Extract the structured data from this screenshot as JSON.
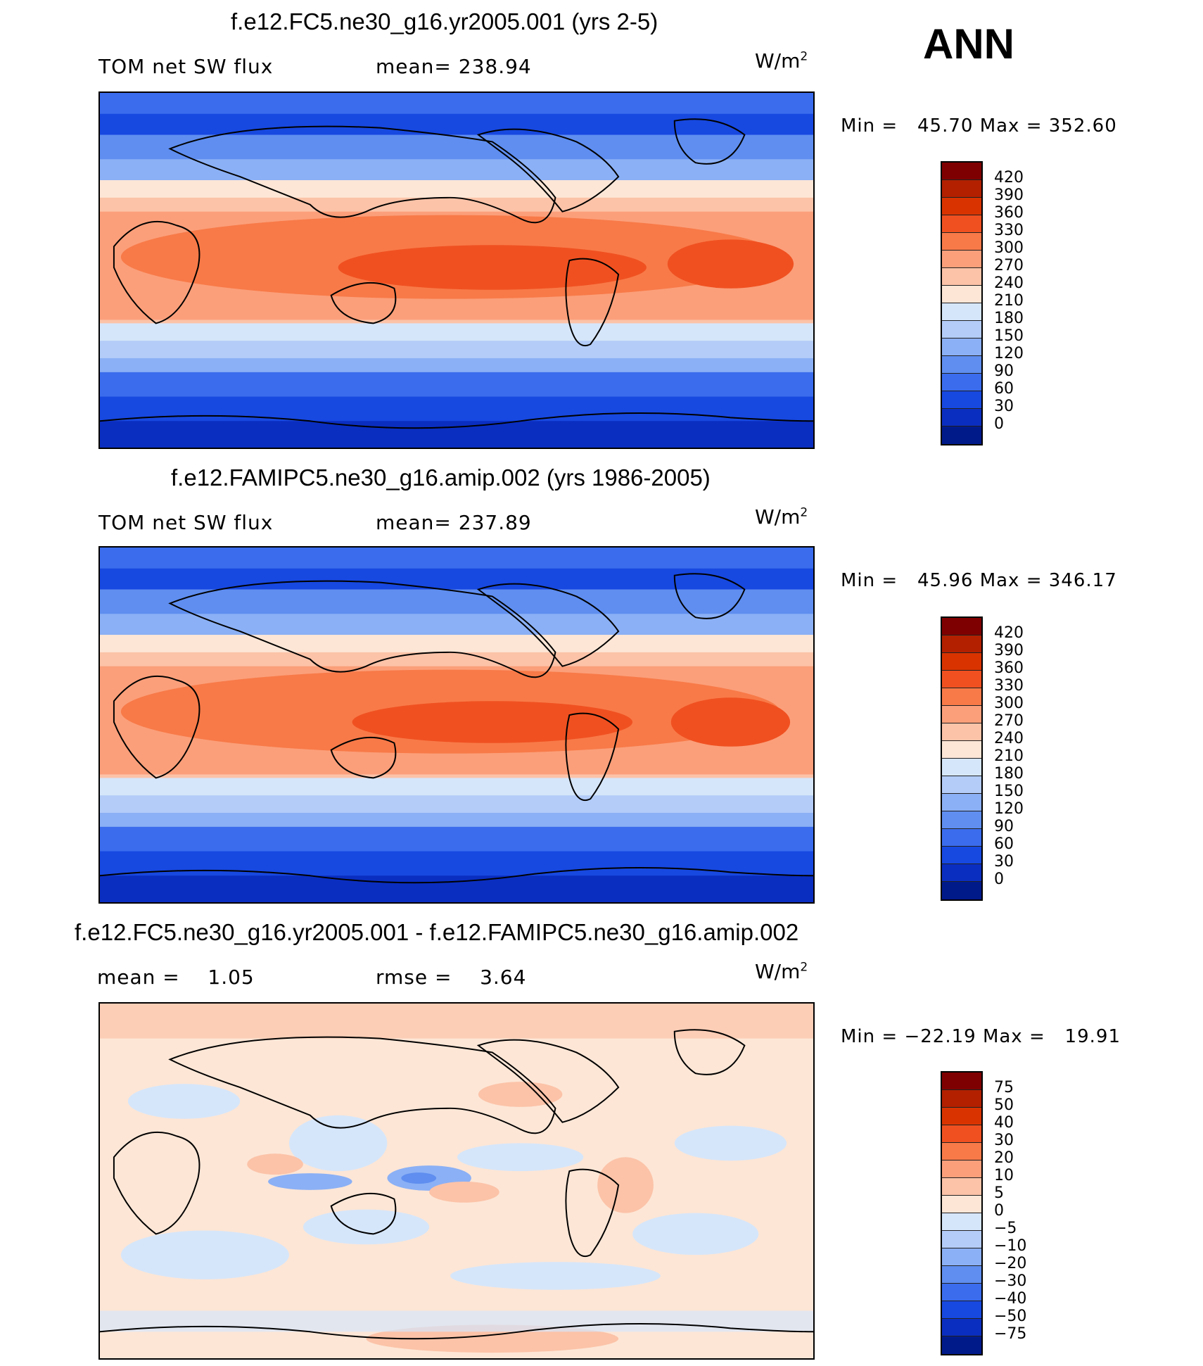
{
  "season": "ANN",
  "panels": [
    {
      "title": "f.e12.FC5.ne30_g16.yr2005.001 (yrs 2-5)",
      "left_label": "TOM net SW flux",
      "stat_label": "mean= 238.94",
      "unit": "W/m",
      "unit_exp": "2",
      "min_label": "Min =",
      "min_value": "45.70",
      "max_label": "Max =",
      "max_value": "352.60",
      "colorbar": {
        "labels": [
          "420",
          "390",
          "360",
          "330",
          "300",
          "270",
          "240",
          "210",
          "180",
          "150",
          "120",
          "90",
          "60",
          "30",
          "0"
        ],
        "colors": [
          "#7f0000",
          "#b22000",
          "#d93400",
          "#f05020",
          "#f87a48",
          "#fb9f7a",
          "#fcc3a8",
          "#fde6d6",
          "#d6e6fa",
          "#b3ccf8",
          "#8bb0f5",
          "#5f8ef0",
          "#3a6ced",
          "#1748e0",
          "#0a2ec0",
          "#001a8a"
        ]
      }
    },
    {
      "title": "f.e12.FAMIPC5.ne30_g16.amip.002 (yrs 1986-2005)",
      "left_label": "TOM net SW flux",
      "stat_label": "mean= 237.89",
      "unit": "W/m",
      "unit_exp": "2",
      "min_label": "Min =",
      "min_value": "45.96",
      "max_label": "Max =",
      "max_value": "346.17",
      "colorbar": {
        "labels": [
          "420",
          "390",
          "360",
          "330",
          "300",
          "270",
          "240",
          "210",
          "180",
          "150",
          "120",
          "90",
          "60",
          "30",
          "0"
        ],
        "colors": [
          "#7f0000",
          "#b22000",
          "#d93400",
          "#f05020",
          "#f87a48",
          "#fb9f7a",
          "#fcc3a8",
          "#fde6d6",
          "#d6e6fa",
          "#b3ccf8",
          "#8bb0f5",
          "#5f8ef0",
          "#3a6ced",
          "#1748e0",
          "#0a2ec0",
          "#001a8a"
        ]
      }
    },
    {
      "title": "f.e12.FC5.ne30_g16.yr2005.001 - f.e12.FAMIPC5.ne30_g16.amip.002",
      "left_label": "mean =",
      "left_value": "1.05",
      "stat_label": "rmse =",
      "stat_value": "3.64",
      "unit": "W/m",
      "unit_exp": "2",
      "min_label": "Min =",
      "min_value": "−22.19",
      "max_label": "Max =",
      "max_value": "19.91",
      "colorbar": {
        "labels": [
          "75",
          "50",
          "40",
          "30",
          "20",
          "10",
          "5",
          "0",
          "−5",
          "−10",
          "−20",
          "−30",
          "−40",
          "−50",
          "−75"
        ],
        "colors": [
          "#7f0000",
          "#b22000",
          "#d93400",
          "#f05020",
          "#f87a48",
          "#fb9f7a",
          "#fcc3a8",
          "#fde6d6",
          "#d6e6fa",
          "#b3ccf8",
          "#8bb0f5",
          "#5f8ef0",
          "#3a6ced",
          "#1748e0",
          "#0a2ec0",
          "#001a8a"
        ]
      }
    }
  ]
}
